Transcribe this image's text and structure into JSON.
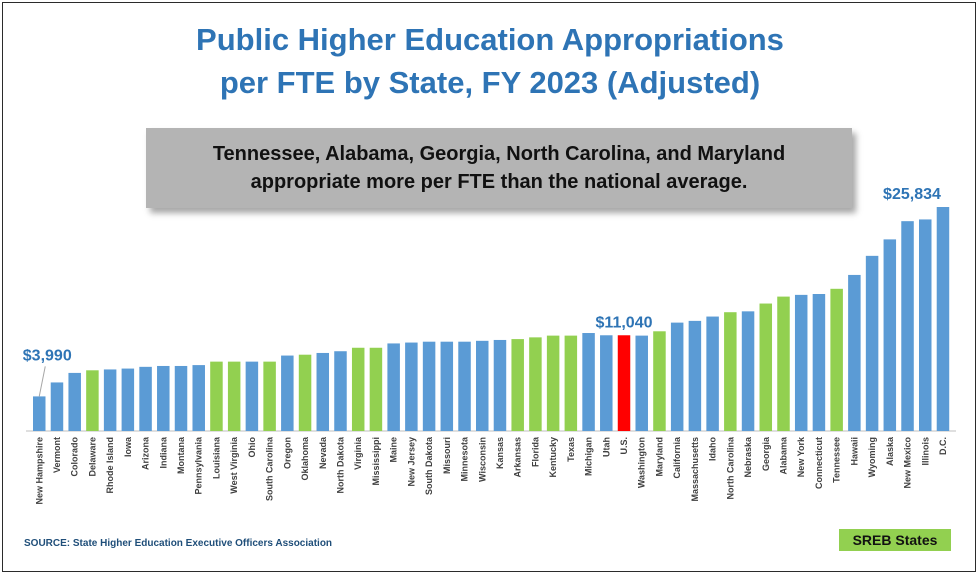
{
  "title": {
    "line1": "Public Higher Education Appropriations",
    "line2": "per FTE by State, FY 2023 (Adjusted)"
  },
  "callout": {
    "line1": "Tennessee, Alabama, Georgia, North Carolina, and Maryland",
    "line2": "appropriate more per FTE than the national average."
  },
  "source": "SOURCE: State Higher Education Executive Officers Association",
  "legend": {
    "sreb_label": "SREB States"
  },
  "colors": {
    "default": "#5b9bd5",
    "sreb": "#92d050",
    "us": "#ff0000",
    "title": "#2e74b5",
    "callout_bg": "#b4b4b4"
  },
  "chart_data": {
    "type": "bar",
    "title": "Public Higher Education Appropriations per FTE by State, FY 2023 (Adjusted)",
    "xlabel": "",
    "ylabel": "",
    "ylim": [
      0,
      26500
    ],
    "grid": false,
    "legend": "bottom-right",
    "categories": [
      "New Hampshire",
      "Vermont",
      "Colorado",
      "Delaware",
      "Rhode Island",
      "Iowa",
      "Arizona",
      "Indiana",
      "Montana",
      "Pennsylvania",
      "Louisiana",
      "West Virginia",
      "Ohio",
      "South Carolina",
      "Oregon",
      "Oklahoma",
      "Nevada",
      "North Dakota",
      "Virginia",
      "Mississippi",
      "Maine",
      "New Jersey",
      "South Dakota",
      "Missouri",
      "Minnesota",
      "Wisconsin",
      "Kansas",
      "Arkansas",
      "Florida",
      "Kentucky",
      "Texas",
      "Michigan",
      "Utah",
      "U.S.",
      "Washington",
      "Maryland",
      "California",
      "Massachusetts",
      "Idaho",
      "North Carolina",
      "Nebraska",
      "Georgia",
      "Alabama",
      "New York",
      "Connecticut",
      "Tennessee",
      "Hawaii",
      "Wyoming",
      "Alaska",
      "New Mexico",
      "Illinois",
      "D.C."
    ],
    "values": [
      3990,
      5600,
      6700,
      7000,
      7100,
      7200,
      7400,
      7500,
      7500,
      7600,
      8000,
      8000,
      8000,
      8000,
      8700,
      8800,
      9000,
      9200,
      9600,
      9600,
      10100,
      10200,
      10300,
      10300,
      10300,
      10400,
      10500,
      10600,
      10800,
      11000,
      11000,
      11300,
      11040,
      11040,
      11000,
      11500,
      12500,
      12700,
      13200,
      13700,
      13800,
      14700,
      15500,
      15700,
      15800,
      16400,
      18000,
      20200,
      22100,
      24200,
      24400,
      25834
    ],
    "group": [
      "other",
      "other",
      "other",
      "sreb",
      "other",
      "other",
      "other",
      "other",
      "other",
      "other",
      "sreb",
      "sreb",
      "other",
      "sreb",
      "other",
      "sreb",
      "other",
      "other",
      "sreb",
      "sreb",
      "other",
      "other",
      "other",
      "other",
      "other",
      "other",
      "other",
      "sreb",
      "sreb",
      "sreb",
      "sreb",
      "other",
      "other",
      "us",
      "other",
      "sreb",
      "other",
      "other",
      "other",
      "sreb",
      "other",
      "sreb",
      "sreb",
      "other",
      "other",
      "sreb",
      "other",
      "other",
      "other",
      "other",
      "other",
      "other"
    ],
    "annotations": [
      {
        "category": "New Hampshire",
        "label": "$3,990"
      },
      {
        "category": "U.S.",
        "label": "$11,040"
      },
      {
        "category": "D.C.",
        "label": "$25,834"
      }
    ]
  }
}
